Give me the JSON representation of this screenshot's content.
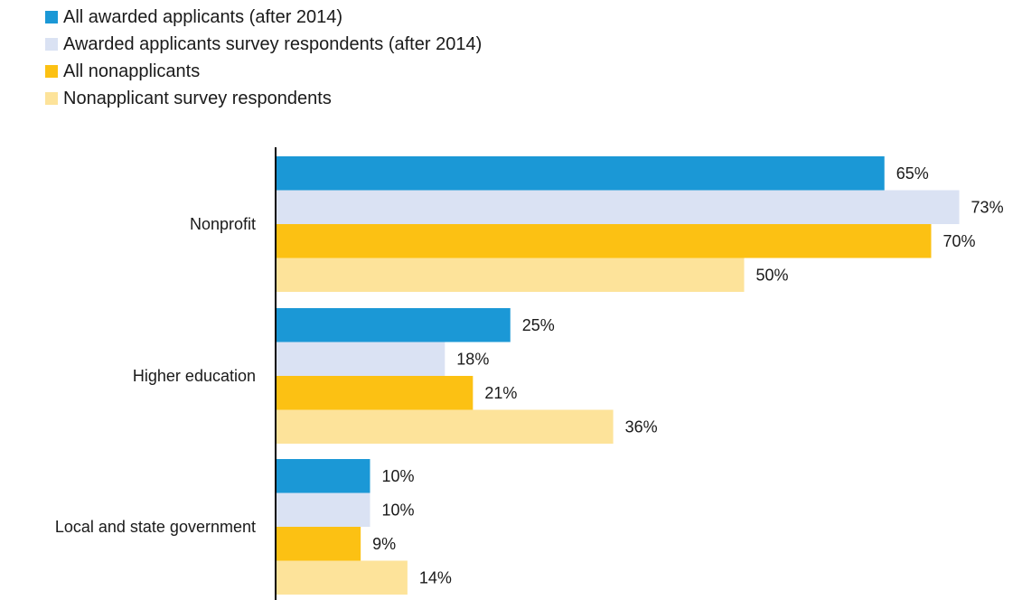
{
  "chart_data": {
    "type": "bar",
    "orientation": "horizontal",
    "categories": [
      "Nonprofit",
      "Higher education",
      "Local and state government"
    ],
    "series": [
      {
        "name": "All awarded applicants (after 2014)",
        "values": [
          65,
          25,
          10
        ],
        "labels": [
          "65%",
          "25%",
          "10%"
        ],
        "color": "#1b98d6"
      },
      {
        "name": "Awarded applicants survey respondents (after 2014)",
        "values": [
          73,
          18,
          10
        ],
        "labels": [
          "73%",
          "18%",
          "10%"
        ],
        "color": "#dae2f3"
      },
      {
        "name": "All nonapplicants",
        "values": [
          70,
          21,
          9
        ],
        "labels": [
          "70%",
          "21%",
          "9%"
        ],
        "color": "#fcc113"
      },
      {
        "name": "Nonapplicant survey respondents",
        "values": [
          50,
          36,
          14
        ],
        "labels": [
          "50%",
          "36%",
          "14%"
        ],
        "color": "#fde39a"
      }
    ],
    "value_unit": "%",
    "legend_position": "top-left",
    "grid": false
  }
}
